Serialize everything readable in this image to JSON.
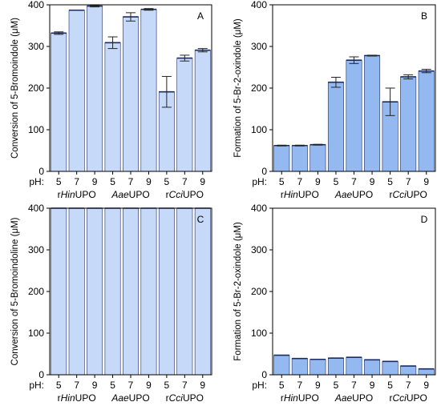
{
  "chart_data": [
    {
      "type": "bar",
      "panel_label": "A",
      "ylabel": "Conversion of 5-Bromoindole (μM)",
      "ylim": [
        0,
        400
      ],
      "yticks": [
        0,
        100,
        200,
        300,
        400
      ],
      "ph_label": "pH:",
      "categories": [
        "5",
        "7",
        "9",
        "5",
        "7",
        "9",
        "5",
        "7",
        "9"
      ],
      "groups": [
        "r|Hin|UPO",
        "|Aae|UPO",
        "r|Cci|UPO"
      ],
      "values": [
        332,
        387,
        397,
        309,
        371,
        389,
        191,
        272,
        291
      ],
      "errors": [
        3,
        0,
        2,
        14,
        10,
        2,
        37,
        7,
        4
      ],
      "bar_color": "#c6d9f8",
      "edge_color": "#1c2c63"
    },
    {
      "type": "bar",
      "panel_label": "B",
      "ylabel": "Formation of 5-Br-2-oxindole (μM)",
      "ylim": [
        0,
        400
      ],
      "yticks": [
        0,
        100,
        200,
        300,
        400
      ],
      "ph_label": "pH:",
      "categories": [
        "5",
        "7",
        "9",
        "5",
        "7",
        "9",
        "5",
        "7",
        "9"
      ],
      "groups": [
        "r|Hin|UPO",
        "|Aae|UPO",
        "r|Cci|UPO"
      ],
      "values": [
        62,
        62,
        64,
        214,
        267,
        278,
        167,
        227,
        241
      ],
      "errors": [
        1,
        1,
        1,
        12,
        8,
        1,
        33,
        5,
        4
      ],
      "bar_color": "#94b9f1",
      "edge_color": "#1c2c63"
    },
    {
      "type": "bar",
      "panel_label": "C",
      "ylabel": "Conversion of 5-Bromoindoline (μM)",
      "ylim": [
        0,
        400
      ],
      "yticks": [
        0,
        100,
        200,
        300,
        400
      ],
      "ph_label": "pH:",
      "categories": [
        "5",
        "7",
        "9",
        "5",
        "7",
        "9",
        "5",
        "7",
        "9"
      ],
      "groups": [
        "r|Hin|UPO",
        "|Aae|UPO",
        "r|Cci|UPO"
      ],
      "values": [
        400,
        400,
        400,
        400,
        400,
        400,
        400,
        400,
        400
      ],
      "errors": [
        0,
        0,
        0,
        0,
        0,
        0,
        0,
        0,
        0
      ],
      "bar_color": "#c6d9f8",
      "edge_color": "#1c2c63"
    },
    {
      "type": "bar",
      "panel_label": "D",
      "ylabel": "Formation of 5-Br-2-oxindole (μM)",
      "ylim": [
        0,
        400
      ],
      "yticks": [
        0,
        100,
        200,
        300,
        400
      ],
      "ph_label": "pH:",
      "categories": [
        "5",
        "7",
        "9",
        "5",
        "7",
        "9",
        "5",
        "7",
        "9"
      ],
      "groups": [
        "r|Hin|UPO",
        "|Aae|UPO",
        "r|Cci|UPO"
      ],
      "values": [
        47,
        39,
        37,
        40,
        42,
        36,
        32,
        21,
        14
      ],
      "errors": [
        0,
        0,
        0,
        0,
        0,
        0,
        0,
        0,
        0
      ],
      "bar_color": "#94b9f1",
      "edge_color": "#1c2c63"
    }
  ]
}
